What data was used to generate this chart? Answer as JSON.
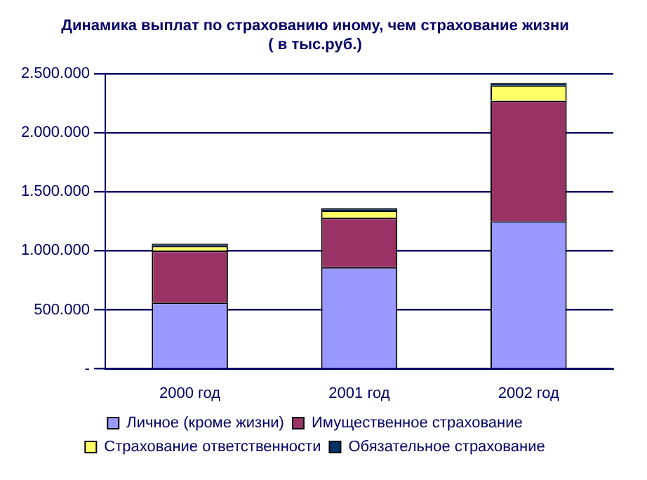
{
  "chart_data": {
    "type": "bar",
    "title": [
      "Динамика выплат по страхованию иному, чем страхование жизни",
      "( в тыс.руб.)"
    ],
    "categories": [
      "2000 год",
      "2001 год",
      "2002 год"
    ],
    "stacked": true,
    "series": [
      {
        "name": "Личное (кроме жизни)",
        "color": "#9999ff",
        "values": [
          560000,
          860000,
          1250000
        ]
      },
      {
        "name": "Имущественное страхование",
        "color": "#993366",
        "values": [
          440000,
          420000,
          1020000
        ]
      },
      {
        "name": "Страхование ответственности",
        "color": "#ffff66",
        "values": [
          40000,
          60000,
          130000
        ]
      },
      {
        "name": "Обязательное страхование",
        "color": "#003366",
        "values": [
          20000,
          20000,
          20000
        ]
      }
    ],
    "ylim": [
      0,
      2500000
    ],
    "yticks": [
      {
        "value": 0,
        "label": "-"
      },
      {
        "value": 500000,
        "label": "500.000"
      },
      {
        "value": 1000000,
        "label": "1.000.000"
      },
      {
        "value": 1500000,
        "label": "1.500.000"
      },
      {
        "value": 2000000,
        "label": "2.000.000"
      },
      {
        "value": 2500000,
        "label": "2.500.000"
      }
    ],
    "grid": "y",
    "legend": "bottom"
  }
}
